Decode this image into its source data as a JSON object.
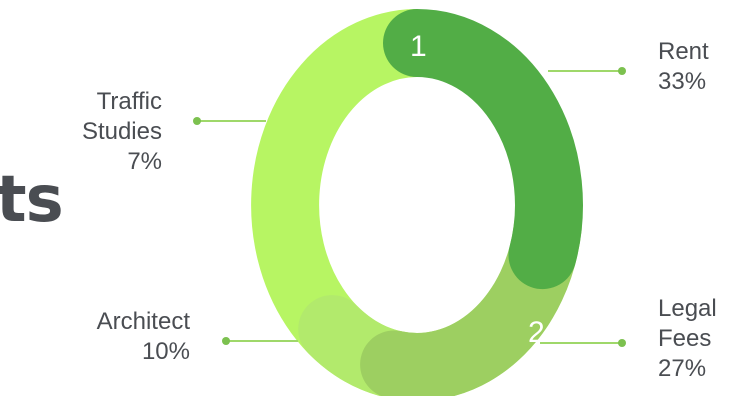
{
  "partial_title": "ts",
  "chart_data": {
    "type": "pie",
    "title": "",
    "categories": [
      "Rent",
      "Legal Fees",
      "Architect",
      "Traffic Studies"
    ],
    "values": [
      33,
      27,
      10,
      7
    ],
    "value_labels": [
      "33%",
      "27%",
      "10%",
      "7%"
    ],
    "segment_numbers": [
      "1",
      "2",
      "",
      ""
    ],
    "colors": [
      "#52ad46",
      "#9dcf61",
      "#b2ea6c",
      "#b7f563"
    ],
    "legend": "callout-labels"
  },
  "labels": {
    "rent": {
      "line1": "Rent",
      "line2": "33%"
    },
    "legal": {
      "line1": "Legal",
      "line2": "Fees",
      "line3": "27%"
    },
    "traffic": {
      "line1": "Traffic",
      "line2": "Studies 7%"
    },
    "architect": {
      "line1": "Architect",
      "line2": "10%"
    }
  }
}
